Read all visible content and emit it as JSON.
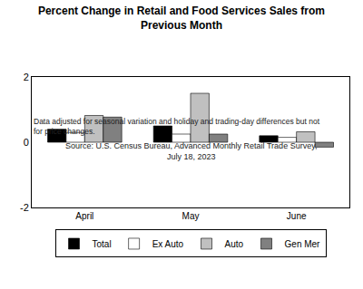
{
  "chart_data": {
    "type": "bar",
    "title": "Percent Change in Retail and Food Services Sales from Previous Month",
    "subtitle": "Data adjusted for seasonal variation and holiday and trading-day differences but not for price changes.",
    "source": "Source: U.S. Census Bureau, Advanced Monthly Retail Trade Survey, July 18, 2023",
    "categories": [
      "April",
      "May",
      "June"
    ],
    "series": [
      {
        "name": "Total",
        "color": "#000000",
        "values": [
          0.4,
          0.5,
          0.2
        ]
      },
      {
        "name": "Ex Auto",
        "color": "#ffffff",
        "values": [
          0.3,
          0.25,
          0.15
        ]
      },
      {
        "name": "Auto",
        "color": "#c0c0c0",
        "values": [
          0.82,
          1.5,
          0.32
        ]
      },
      {
        "name": "Gen Mer",
        "color": "#808080",
        "values": [
          0.77,
          0.25,
          -0.15
        ]
      }
    ],
    "ylim": [
      -2,
      2
    ],
    "yticks": [
      -2,
      0,
      2
    ],
    "grid": false,
    "legend": "bottom"
  }
}
